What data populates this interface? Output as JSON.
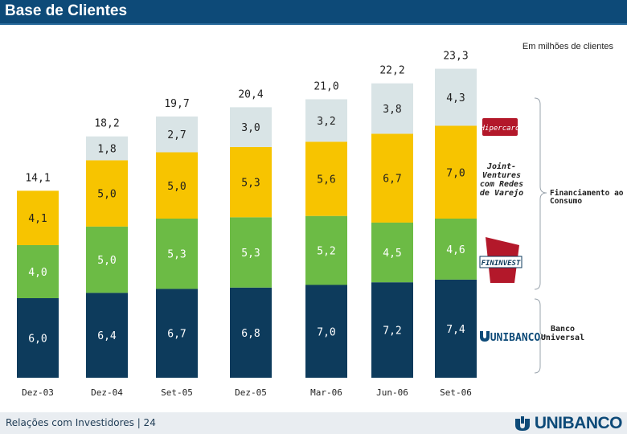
{
  "header": {
    "title": "Base de Clientes"
  },
  "units_note": "Em milhões de clientes",
  "footer": {
    "caption": "Relações com Investidores | 24",
    "brand": "UNIBANCO"
  },
  "colors": {
    "banco_universal": "#0d3b5c",
    "financeira": "#6cbb45",
    "joint_ventures": "#f7c400",
    "hipercard": "#d9e4e6",
    "header_bar": "#0d4a78"
  },
  "side_labels": {
    "joint_ventures": "Joint-\nVentures\ncom Redes\nde Varejo",
    "financiamento": "Financiamento ao\nConsumo",
    "banco_universal": "Banco\nUniversal"
  },
  "logos": {
    "hipercard": "Hipercard",
    "fininvest": "FININVEST",
    "unibanco": "UNIBANCO"
  },
  "chart_data": {
    "type": "bar",
    "stacked": true,
    "categories": [
      "Dez-03",
      "Dez-04",
      "Set-05",
      "Dez-05",
      "Mar-06",
      "Jun-06",
      "Set-06"
    ],
    "series": [
      {
        "key": "banco_universal",
        "values": [
          6.0,
          6.4,
          6.7,
          6.8,
          7.0,
          7.2,
          7.4
        ],
        "labels": [
          "6,0",
          "6,4",
          "6,7",
          "6,8",
          "7,0",
          "7,2",
          "7,4"
        ]
      },
      {
        "key": "financeira",
        "values": [
          4.0,
          5.0,
          5.3,
          5.3,
          5.2,
          4.5,
          4.6
        ],
        "labels": [
          "4,0",
          "5,0",
          "5,3",
          "5,3",
          "5,2",
          "4,5",
          "4,6"
        ]
      },
      {
        "key": "joint_ventures",
        "values": [
          4.1,
          5.0,
          5.0,
          5.3,
          5.6,
          6.7,
          7.0
        ],
        "labels": [
          "4,1",
          "5,0",
          "5,0",
          "5,3",
          "5,6",
          "6,7",
          "7,0"
        ]
      },
      {
        "key": "hipercard",
        "values": [
          0,
          1.8,
          2.7,
          3.0,
          3.2,
          3.8,
          4.3
        ],
        "labels": [
          "",
          "1,8",
          "2,7",
          "3,0",
          "3,2",
          "3,8",
          "4,3"
        ]
      }
    ],
    "totals": [
      14.1,
      18.2,
      19.7,
      20.4,
      21.0,
      22.2,
      23.3
    ],
    "total_labels": [
      "14,1",
      "18,2",
      "19,7",
      "20,4",
      "21,0",
      "22,2",
      "23,3"
    ]
  }
}
